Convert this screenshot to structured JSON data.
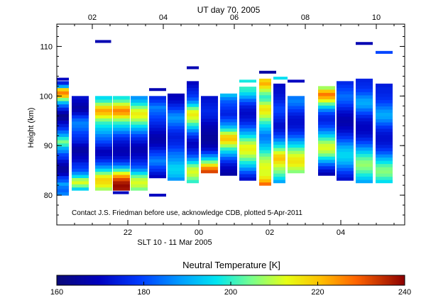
{
  "chart_data": {
    "type": "heatmap",
    "title": "UT day 70, 2005",
    "xlabel": "SLT 10 - 11 Mar 2005",
    "ylabel": "Height (km)",
    "xlim": [
      20.0,
      29.8
    ],
    "ylim": [
      74.0,
      114.5
    ],
    "bottom_ticks": [
      {
        "value": 22,
        "label": "22"
      },
      {
        "value": 24,
        "label": "00"
      },
      {
        "value": 26,
        "label": "02"
      },
      {
        "value": 28,
        "label": "04"
      }
    ],
    "top_ticks": [
      {
        "value": 21.0,
        "label": "02"
      },
      {
        "value": 23.0,
        "label": "04"
      },
      {
        "value": 25.0,
        "label": "06"
      },
      {
        "value": 27.0,
        "label": "08"
      },
      {
        "value": 29.0,
        "label": "10"
      }
    ],
    "y_ticks": [
      80,
      90,
      100,
      110
    ],
    "annotation": "Contact J.S. Friedman before use, acknowledge CDB, plotted 5-Apr-2011",
    "colorbar": {
      "title": "Neutral Temperature [K]",
      "min": 160,
      "max": 240,
      "ticks": [
        160,
        180,
        200,
        220,
        240
      ]
    },
    "profiles": [
      {
        "x": 20.0,
        "w": 0.34,
        "y0": 80.0,
        "y1": 103.0,
        "t": [
          186,
          183,
          185,
          189,
          182,
          178,
          170,
          166,
          165,
          168,
          172,
          177,
          180,
          186,
          191,
          200,
          205,
          199,
          190,
          184,
          178,
          174,
          170,
          165,
          163,
          168,
          175,
          183,
          192,
          205,
          220,
          226,
          218,
          190,
          175
        ]
      },
      {
        "x": 20.42,
        "w": 0.48,
        "y0": 81.0,
        "y1": 100.0,
        "t": [
          195,
          205,
          212,
          208,
          196,
          187,
          181,
          178,
          176,
          172,
          170,
          168,
          166,
          167,
          170,
          174,
          176,
          178,
          180,
          183,
          185,
          186,
          183,
          178,
          172,
          168,
          166,
          168,
          170,
          172
        ]
      },
      {
        "x": 21.08,
        "w": 0.48,
        "y0": 81.0,
        "y1": 100.0,
        "t": [
          208,
          214,
          217,
          218,
          214,
          205,
          196,
          188,
          182,
          177,
          173,
          170,
          169,
          172,
          176,
          180,
          183,
          186,
          190,
          193,
          197,
          200,
          206,
          213,
          220,
          223,
          217,
          208,
          200,
          196
        ]
      },
      {
        "x": 21.58,
        "w": 0.48,
        "y0": 81.0,
        "y1": 100.0,
        "t": [
          238,
          239,
          237,
          232,
          224,
          213,
          201,
          190,
          182,
          176,
          172,
          169,
          168,
          169,
          171,
          173,
          176,
          180,
          185,
          190,
          195,
          200,
          207,
          215,
          223,
          226,
          220,
          211,
          203,
          198
        ]
      },
      {
        "x": 22.08,
        "w": 0.48,
        "y0": 81.0,
        "y1": 100.0,
        "t": [
          205,
          210,
          212,
          210,
          204,
          196,
          188,
          182,
          178,
          175,
          172,
          170,
          168,
          168,
          170,
          173,
          176,
          180,
          185,
          190,
          196,
          202,
          208,
          213,
          215,
          212,
          205,
          198,
          192,
          188
        ]
      },
      {
        "x": 22.6,
        "w": 0.48,
        "y0": 83.5,
        "y1": 100.0,
        "t": [
          170,
          173,
          177,
          180,
          184,
          186,
          183,
          180,
          177,
          173,
          170,
          168,
          167,
          168,
          170,
          172,
          174,
          176,
          178,
          180,
          182,
          184,
          186,
          182,
          178,
          176
        ]
      },
      {
        "x": 23.12,
        "w": 0.48,
        "y0": 83.0,
        "y1": 100.5,
        "t": [
          188,
          192,
          194,
          195,
          194,
          191,
          188,
          186,
          184,
          181,
          178,
          176,
          175,
          174,
          175,
          177,
          180,
          183,
          186,
          188,
          186,
          182,
          178,
          175,
          172,
          170,
          169
        ]
      },
      {
        "x": 23.66,
        "w": 0.34,
        "y0": 82.5,
        "y1": 103.0,
        "t": [
          200,
          205,
          210,
          212,
          210,
          204,
          196,
          188,
          182,
          177,
          174,
          171,
          170,
          172,
          176,
          181,
          187,
          194,
          200,
          207,
          212,
          215,
          213,
          205,
          196,
          188,
          182,
          178,
          176,
          174,
          172,
          170
        ]
      },
      {
        "x": 24.06,
        "w": 0.48,
        "y0": 84.5,
        "y1": 100.0,
        "t": [
          232,
          226,
          216,
          205,
          195,
          186,
          178,
          172,
          168,
          166,
          165,
          165,
          166,
          167,
          168,
          170,
          172,
          174,
          175,
          176,
          175,
          174,
          173,
          172
        ]
      },
      {
        "x": 24.6,
        "w": 0.48,
        "y0": 84.0,
        "y1": 100.5,
        "t": [
          166,
          168,
          170,
          173,
          177,
          182,
          188,
          194,
          200,
          208,
          215,
          220,
          218,
          210,
          200,
          192,
          186,
          182,
          178,
          175,
          176,
          178,
          180,
          182,
          186,
          192
        ]
      },
      {
        "x": 25.14,
        "w": 0.48,
        "y0": 83.0,
        "y1": 101.5,
        "t": [
          172,
          176,
          181,
          187,
          193,
          198,
          203,
          208,
          212,
          214,
          213,
          209,
          203,
          197,
          191,
          186,
          181,
          177,
          174,
          172,
          171,
          172,
          174,
          178,
          183,
          189,
          195,
          199
        ]
      },
      {
        "x": 25.7,
        "w": 0.34,
        "y0": 82.0,
        "y1": 103.5,
        "t": [
          228,
          221,
          215,
          212,
          212,
          213,
          212,
          210,
          207,
          203,
          199,
          195,
          192,
          188,
          186,
          185,
          188,
          192,
          196,
          200,
          205,
          210,
          214,
          216,
          214,
          208,
          202,
          200,
          204,
          210,
          216,
          222,
          218
        ]
      },
      {
        "x": 26.1,
        "w": 0.34,
        "y0": 82.5,
        "y1": 102.5,
        "t": [
          190,
          196,
          201,
          205,
          208,
          212,
          216,
          220,
          218,
          212,
          205,
          198,
          192,
          186,
          181,
          177,
          174,
          172,
          172,
          174,
          176,
          178,
          180,
          180,
          178,
          176,
          174,
          173,
          172,
          172,
          171
        ]
      },
      {
        "x": 26.5,
        "w": 0.48,
        "y0": 84.5,
        "y1": 100.0,
        "t": [
          206,
          210,
          214,
          216,
          215,
          212,
          208,
          203,
          197,
          192,
          187,
          182,
          178,
          175,
          173,
          172,
          172,
          173,
          175,
          178,
          181,
          184,
          186,
          185
        ]
      },
      {
        "x": 27.36,
        "w": 0.48,
        "y0": 84.0,
        "y1": 102.0,
        "t": [
          168,
          172,
          177,
          183,
          190,
          197,
          204,
          209,
          212,
          211,
          207,
          201,
          195,
          189,
          184,
          180,
          177,
          175,
          176,
          180,
          186,
          194,
          203,
          213,
          222,
          227,
          220,
          208
        ]
      },
      {
        "x": 27.88,
        "w": 0.48,
        "y0": 83.0,
        "y1": 103.0,
        "t": [
          172,
          175,
          178,
          182,
          186,
          190,
          193,
          195,
          195,
          193,
          190,
          186,
          182,
          178,
          175,
          172,
          170,
          168,
          167,
          168,
          170,
          172,
          175,
          178,
          181,
          183,
          184,
          182,
          180,
          178,
          176
        ]
      },
      {
        "x": 28.42,
        "w": 0.48,
        "y0": 82.5,
        "y1": 103.5,
        "t": [
          190,
          194,
          198,
          202,
          205,
          207,
          206,
          203,
          199,
          194,
          189,
          184,
          180,
          176,
          173,
          171,
          170,
          170,
          171,
          173,
          176,
          180,
          184,
          188,
          190,
          189,
          186,
          182,
          179,
          177,
          176,
          175
        ]
      },
      {
        "x": 28.98,
        "w": 0.48,
        "y0": 82.5,
        "y1": 102.5,
        "t": [
          196,
          200,
          204,
          206,
          205,
          202,
          197,
          192,
          187,
          182,
          178,
          175,
          173,
          172,
          172,
          173,
          175,
          178,
          182,
          186,
          189,
          190,
          188,
          185,
          182,
          179,
          177,
          176,
          175,
          175,
          174
        ]
      }
    ],
    "dashes": [
      {
        "x": 20.0,
        "w": 0.34,
        "y": 103.4,
        "t": 170
      },
      {
        "x": 21.08,
        "w": 0.45,
        "y": 111.0,
        "t": 168
      },
      {
        "x": 21.58,
        "w": 0.45,
        "y": 80.5,
        "t": 170
      },
      {
        "x": 22.6,
        "w": 0.48,
        "y": 101.3,
        "t": 168
      },
      {
        "x": 22.6,
        "w": 0.48,
        "y": 80.0,
        "t": 170
      },
      {
        "x": 23.66,
        "w": 0.34,
        "y": 105.7,
        "t": 168
      },
      {
        "x": 25.14,
        "w": 0.48,
        "y": 103.0,
        "t": 198
      },
      {
        "x": 25.14,
        "w": 0.48,
        "y": 101.6,
        "t": 200
      },
      {
        "x": 25.7,
        "w": 0.48,
        "y": 104.8,
        "t": 166
      },
      {
        "x": 26.1,
        "w": 0.4,
        "y": 103.6,
        "t": 196
      },
      {
        "x": 26.5,
        "w": 0.48,
        "y": 103.0,
        "t": 170
      },
      {
        "x": 28.42,
        "w": 0.48,
        "y": 110.6,
        "t": 168
      },
      {
        "x": 28.98,
        "w": 0.48,
        "y": 108.8,
        "t": 180
      }
    ]
  }
}
